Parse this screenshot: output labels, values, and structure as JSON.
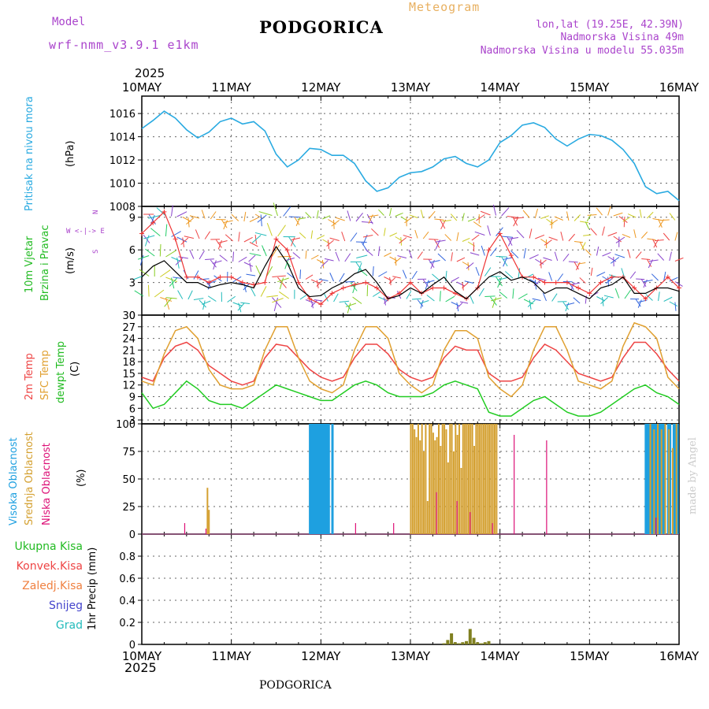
{
  "header": {
    "model_label": "Model",
    "model_name": "wrf-nmm_v3.9.1 e1km",
    "station": "PODGORICA",
    "meteogram": "Meteogram",
    "lonlat": "lon,lat (19.25E, 42.39N)",
    "elevation": "Nadmorska Visina 49m",
    "model_elevation": "Nadmorska Visina u modelu 55.035m",
    "year_top": "2025",
    "year_bottom": "2025",
    "footer_station": "PODGORICA",
    "watermark": "made by Angel"
  },
  "colors": {
    "pressure": "#29aae1",
    "wind_speed": "#000000",
    "wind_gust": "#ee3333",
    "t2m": "#ee4444",
    "tsfc": "#e0a030",
    "dewpoint": "#22cc22",
    "cloud_high": "#1ea0e0",
    "cloud_mid": "#d4a030",
    "cloud_low": "#dd1177",
    "precip": "#808020",
    "purple": "#aa44cc"
  },
  "panel_labels": {
    "pressure": [
      "Pritisak na nivou mora",
      "(hPa)"
    ],
    "wind": [
      "10m Vjetar",
      "Brzina i Pravac",
      "(m/s)"
    ],
    "compass": [
      "N",
      "W  <-|->  E",
      "S"
    ],
    "temp": [
      "2m Temp",
      "SFC Temp",
      "dewpt Temp",
      "(C)"
    ],
    "cloud": [
      "Visoka Oblacnost",
      "Srednja Oblacnost",
      "Niska Oblacnost",
      "(%)"
    ],
    "precip_legend": [
      "Ukupna Kisa",
      "Konvek.Kisa",
      "Zaledj.Kisa",
      "Snijeg",
      "Grad"
    ],
    "precip_axis": "1hr Precip (mm)"
  },
  "chart_data": [
    {
      "type": "line",
      "name": "pressure",
      "x_ticks": [
        "10MAY",
        "11MAY",
        "12MAY",
        "13MAY",
        "14MAY",
        "15MAY",
        "16MAY"
      ],
      "ylim": [
        1008,
        1017.5
      ],
      "y_ticks": [
        1008,
        1010,
        1012,
        1014,
        1016
      ],
      "x_hours": [
        0,
        3,
        6,
        9,
        12,
        15,
        18,
        21,
        24,
        27,
        30,
        33,
        36,
        39,
        42,
        45,
        48,
        51,
        54,
        57,
        60,
        63,
        66,
        69,
        72,
        75,
        78,
        81,
        84,
        87,
        90,
        93,
        96,
        99,
        102,
        105,
        108,
        111,
        114,
        117,
        120,
        123,
        126,
        129,
        132,
        135,
        138,
        141,
        144
      ],
      "values": [
        1014.7,
        1015.4,
        1016.2,
        1015.6,
        1014.6,
        1013.9,
        1014.4,
        1015.3,
        1015.6,
        1015.1,
        1015.3,
        1014.5,
        1012.5,
        1011.4,
        1012.0,
        1013.0,
        1012.9,
        1012.4,
        1012.4,
        1011.7,
        1010.2,
        1009.3,
        1009.6,
        1010.5,
        1010.9,
        1011.0,
        1011.4,
        1012.1,
        1012.3,
        1011.7,
        1011.4,
        1012.0,
        1013.5,
        1014.1,
        1015.0,
        1015.2,
        1014.8,
        1013.8,
        1013.2,
        1013.8,
        1014.2,
        1014.1,
        1013.7,
        1012.9,
        1011.7,
        1009.7,
        1009.1,
        1009.3,
        1008.5
      ],
      "grid": true
    },
    {
      "type": "line",
      "name": "wind",
      "ylim": [
        0,
        10
      ],
      "y_ticks": [
        0,
        3,
        6,
        9
      ],
      "x_hours": [
        0,
        3,
        6,
        9,
        12,
        15,
        18,
        21,
        24,
        27,
        30,
        33,
        36,
        39,
        42,
        45,
        48,
        51,
        54,
        57,
        60,
        63,
        66,
        69,
        72,
        75,
        78,
        81,
        84,
        87,
        90,
        93,
        96,
        99,
        102,
        105,
        108,
        111,
        114,
        117,
        120,
        123,
        126,
        129,
        132,
        135,
        138,
        141,
        144
      ],
      "series": [
        {
          "values": [
            3.5,
            4.5,
            5.0,
            4.0,
            3.0,
            3.0,
            2.5,
            2.8,
            3.0,
            2.8,
            2.5,
            4.5,
            6.3,
            4.8,
            2.5,
            1.7,
            1.8,
            2.5,
            3.0,
            3.8,
            4.2,
            3.0,
            1.5,
            1.8,
            2.5,
            2.0,
            2.8,
            3.5,
            2.2,
            1.5,
            2.5,
            3.5,
            4.0,
            3.2,
            3.5,
            3.0,
            2.0,
            2.5,
            2.5,
            2.0,
            1.5,
            2.5,
            2.8,
            3.5,
            2.0,
            2.0,
            2.5,
            2.5,
            2.2
          ]
        },
        {
          "values": [
            7.5,
            8.5,
            9.5,
            7.0,
            3.5,
            3.5,
            3.0,
            3.5,
            3.5,
            3.0,
            2.8,
            3.0,
            7.0,
            6.0,
            3.0,
            1.5,
            1.0,
            2.0,
            2.5,
            2.8,
            3.0,
            2.5,
            1.5,
            2.0,
            3.0,
            2.0,
            2.5,
            2.5,
            2.0,
            1.5,
            2.5,
            6.0,
            7.5,
            5.5,
            3.5,
            3.5,
            3.0,
            3.0,
            3.0,
            2.5,
            2.0,
            3.0,
            3.5,
            3.5,
            2.5,
            1.5,
            2.5,
            3.5,
            2.5
          ]
        }
      ],
      "grid": true
    },
    {
      "type": "line",
      "name": "temperature",
      "ylim": [
        2,
        30
      ],
      "y_ticks": [
        3,
        6,
        9,
        12,
        15,
        18,
        21,
        24,
        27,
        30
      ],
      "x_hours": [
        0,
        3,
        6,
        9,
        12,
        15,
        18,
        21,
        24,
        27,
        30,
        33,
        36,
        39,
        42,
        45,
        48,
        51,
        54,
        57,
        60,
        63,
        66,
        69,
        72,
        75,
        78,
        81,
        84,
        87,
        90,
        93,
        96,
        99,
        102,
        105,
        108,
        111,
        114,
        117,
        120,
        123,
        126,
        129,
        132,
        135,
        138,
        141,
        144
      ],
      "series": [
        {
          "values": [
            14,
            13,
            19,
            22,
            23,
            21,
            17,
            15,
            13,
            12,
            13,
            19,
            22.5,
            22,
            19,
            16,
            14,
            13,
            14,
            19,
            22.5,
            22.5,
            20,
            16,
            14,
            13,
            14,
            19,
            22,
            21,
            21,
            15,
            13,
            13,
            14,
            19,
            22.5,
            21,
            18,
            15,
            14,
            13,
            14,
            19,
            23,
            23,
            20,
            16,
            13
          ]
        },
        {
          "values": [
            13,
            12,
            20,
            26,
            27,
            24,
            16,
            12,
            11,
            11,
            12,
            21,
            27,
            27,
            19,
            13,
            11,
            10,
            12,
            21,
            27,
            27,
            24,
            15,
            12,
            10,
            12,
            21,
            26,
            26,
            24,
            14,
            11,
            9,
            12,
            21,
            27,
            27,
            21,
            13,
            12,
            11,
            13,
            22,
            28,
            27,
            24,
            14,
            11
          ]
        },
        {
          "values": [
            10,
            6,
            7,
            10,
            13,
            11,
            8,
            7,
            7,
            6,
            8,
            10,
            12,
            11,
            10,
            9,
            8,
            8,
            10,
            12,
            13,
            12,
            10,
            9,
            9,
            9,
            10,
            12,
            13,
            12,
            11,
            5,
            4,
            4,
            6,
            8,
            9,
            7,
            5,
            4,
            4,
            5,
            7,
            9,
            11,
            12,
            10,
            9,
            7
          ]
        }
      ],
      "grid": true
    },
    {
      "type": "bar",
      "name": "cloud_cover",
      "ylim": [
        0,
        100
      ],
      "y_ticks": [
        0,
        25,
        50,
        75,
        100
      ],
      "series": [
        {
          "hours": [
            12,
            12.2,
            17.5,
            45,
            46,
            47,
            48,
            49,
            50,
            51,
            52,
            53,
            54,
            55,
            56,
            57,
            58,
            59,
            60,
            61,
            62,
            63,
            64,
            65,
            66,
            67,
            68,
            69,
            70,
            71,
            72,
            73,
            74,
            75,
            76,
            77,
            78,
            79,
            80,
            81,
            82,
            83,
            84,
            85,
            86,
            87,
            88,
            89,
            90,
            91,
            92,
            93,
            94,
            95,
            96,
            97,
            98,
            99,
            100,
            101,
            102,
            103,
            104,
            105,
            106,
            107,
            108,
            109,
            110,
            111,
            112,
            113,
            114,
            115,
            116,
            117,
            118,
            119,
            120,
            121,
            122,
            123,
            124,
            125,
            126,
            127,
            128,
            129,
            130,
            131,
            132,
            133,
            134,
            135,
            136,
            137,
            138,
            139,
            140,
            141,
            142,
            143,
            144
          ],
          "values": [
            0,
            0,
            0,
            0,
            0,
            0,
            0,
            0,
            0,
            0,
            0,
            0,
            0,
            0,
            0,
            0,
            0,
            0,
            0,
            0,
            0,
            0,
            0,
            0,
            0,
            0,
            0,
            0,
            0,
            0,
            0,
            0,
            0,
            0,
            0,
            0,
            0,
            0,
            0,
            0,
            0,
            0,
            0,
            0,
            0,
            0,
            0,
            0,
            0,
            0,
            0,
            0,
            0,
            0,
            0,
            0,
            0,
            0,
            0,
            0,
            0,
            0,
            0,
            0,
            0,
            0,
            0,
            0,
            0,
            0,
            0,
            0,
            0,
            0,
            0,
            0,
            0,
            0,
            0,
            0,
            0,
            0,
            0,
            0,
            0,
            0,
            0,
            0,
            0,
            0,
            0,
            0,
            0,
            0,
            0,
            0,
            0,
            0,
            0,
            0,
            0,
            0,
            0
          ]
        }
      ],
      "high_hours": [
        45.1,
        45.6,
        46.1,
        46.6,
        47.1,
        47.6,
        48.1,
        48.6,
        49.1,
        49.6,
        50.1,
        51.1,
        135.1,
        135.6,
        136.1,
        136.6,
        137.1,
        137.6,
        138.1,
        138.6,
        139.1,
        139.6,
        140.1,
        141.1,
        141.6,
        142.6,
        143.1,
        143.6
      ],
      "high_values": [
        100,
        100,
        100,
        100,
        100,
        100,
        100,
        100,
        100,
        100,
        100,
        100,
        100,
        100,
        100,
        100,
        100,
        100,
        100,
        100,
        100,
        100,
        100,
        100,
        100,
        100,
        100,
        100
      ],
      "mid_hours": [
        17.6,
        18.0,
        72.1,
        72.6,
        73.1,
        73.6,
        74.1,
        74.6,
        75.1,
        75.6,
        76.1,
        76.6,
        77.1,
        77.6,
        78.1,
        78.6,
        79.1,
        79.6,
        80.1,
        80.6,
        81.1,
        81.6,
        82.1,
        82.6,
        83.1,
        83.6,
        84.1,
        84.6,
        85.1,
        85.6,
        86.1,
        86.6,
        87.1,
        87.6,
        88.1,
        88.6,
        89.1,
        89.6,
        90.1,
        90.6,
        91.1,
        91.6,
        92.1,
        92.6,
        93.1,
        93.6,
        94.1,
        94.6,
        95.1,
        136.3,
        137.3,
        138.3,
        139.3,
        140.3,
        141.3,
        142.3,
        143.3
      ],
      "mid_values": [
        42,
        22,
        100,
        100,
        95,
        88,
        100,
        85,
        100,
        75,
        100,
        30,
        100,
        100,
        92,
        85,
        88,
        100,
        80,
        100,
        100,
        95,
        65,
        100,
        100,
        75,
        100,
        90,
        100,
        60,
        100,
        100,
        100,
        100,
        100,
        100,
        80,
        100,
        100,
        100,
        100,
        100,
        100,
        100,
        100,
        100,
        100,
        100,
        100,
        100,
        95,
        100,
        95,
        100,
        95,
        78,
        100
      ],
      "low_hours": [
        11.5,
        17.2,
        57.3,
        67.5,
        79.0,
        84.5,
        88.0,
        94.0,
        99.8,
        108.5,
        137.8
      ],
      "low_values": [
        10,
        5,
        10,
        10,
        38,
        30,
        20,
        10,
        90,
        85,
        15
      ]
    },
    {
      "type": "bar",
      "name": "precipitation",
      "ylim": [
        0,
        1
      ],
      "y_ticks": [
        0,
        0.2,
        0.4,
        0.6,
        0.8
      ],
      "hours": [
        81,
        82,
        83,
        84,
        85,
        86,
        87,
        88,
        89,
        90,
        91,
        92,
        93
      ],
      "values": [
        0.01,
        0.04,
        0.1,
        0.02,
        0.01,
        0.02,
        0.03,
        0.14,
        0.06,
        0.02,
        0.01,
        0.02,
        0.03
      ]
    }
  ]
}
